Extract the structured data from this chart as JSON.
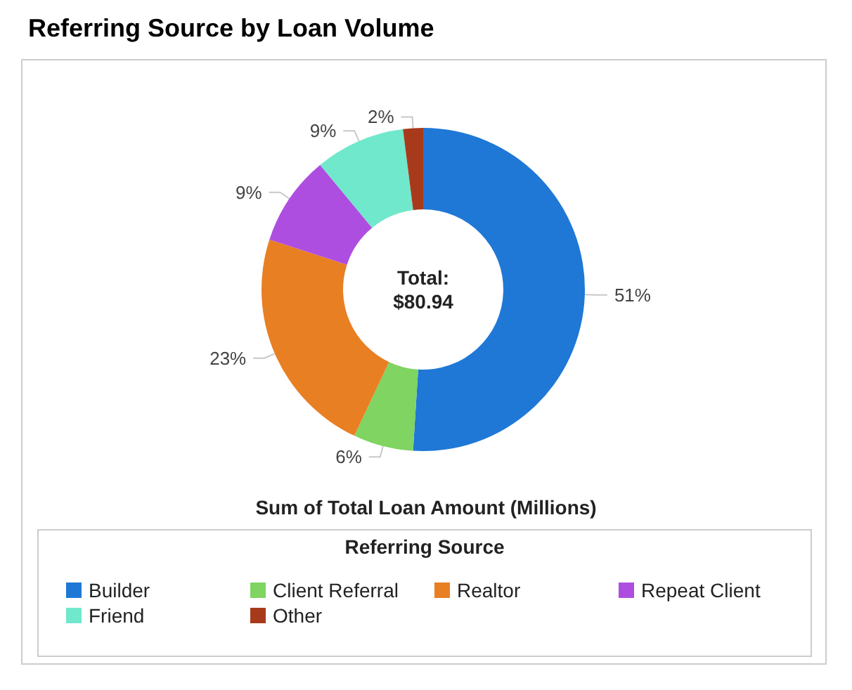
{
  "chart_data": {
    "type": "donut",
    "title": "Referring Source by Loan Volume",
    "xlabel": "Sum of Total Loan Amount (Millions)",
    "legend_title": "Referring Source",
    "categories": [
      "Builder",
      "Client Referral",
      "Realtor",
      "Repeat Client",
      "Friend",
      "Other"
    ],
    "values": [
      51,
      6,
      23,
      9,
      9,
      2
    ],
    "value_labels": [
      "51%",
      "6%",
      "23%",
      "9%",
      "9%",
      "2%"
    ],
    "colors": [
      "#1f78d6",
      "#7fd462",
      "#e87f22",
      "#ae4ee0",
      "#70e8cc",
      "#a83a1c"
    ],
    "legend": "bottom",
    "annotations": [
      "Total:\n$80.94"
    ]
  }
}
